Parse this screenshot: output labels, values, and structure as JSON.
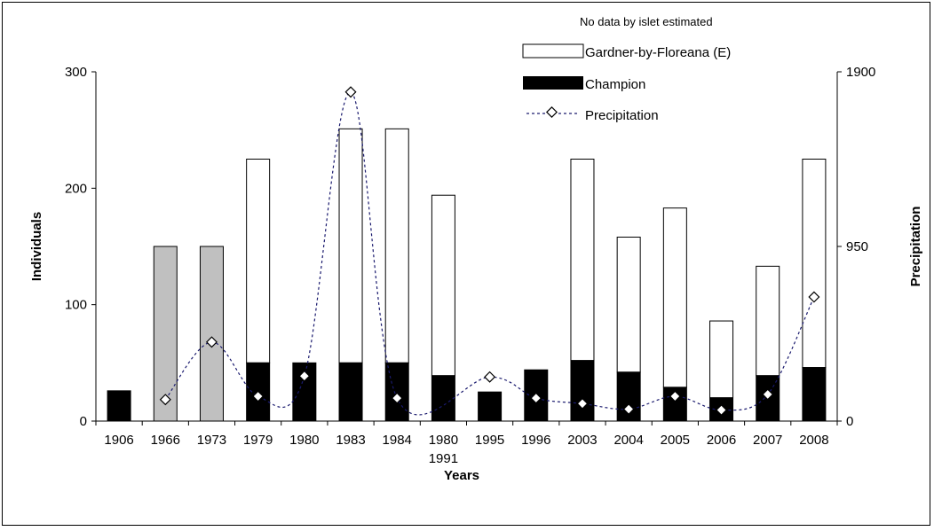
{
  "chart_data": {
    "type": "bar",
    "title": "",
    "xlabel": "Years",
    "ylabel": "Individuals",
    "y2label": "Precipitation",
    "ylim": [
      0,
      300
    ],
    "y2lim": [
      0,
      1900
    ],
    "yticks": [
      "0",
      "100",
      "200",
      "300"
    ],
    "y2ticks": [
      "0",
      "950",
      "1900"
    ],
    "legend_note": "No data by islet estimated",
    "legend_position": "top-right",
    "categories": [
      "1906",
      "1966",
      "1973",
      "1979",
      "1980",
      "1983",
      "1984",
      "1980\n1991",
      "1995",
      "1996",
      "2003",
      "2004",
      "2005",
      "2006",
      "2007",
      "2008"
    ],
    "series": [
      {
        "name": "Champion",
        "type": "bar",
        "color": "#000000",
        "values": [
          26,
          null,
          null,
          50,
          50,
          50,
          50,
          39,
          25,
          44,
          52,
          42,
          29,
          20,
          39,
          46
        ]
      },
      {
        "name": "Gardner-by-Floreana (E)",
        "type": "bar-total",
        "color": "#ffffff",
        "values": [
          null,
          null,
          null,
          225,
          null,
          251,
          251,
          194,
          null,
          null,
          225,
          158,
          183,
          86,
          133,
          225
        ]
      },
      {
        "name": "",
        "type": "bar-estimated",
        "color": "#c0c0c0",
        "values": [
          null,
          150,
          150,
          null,
          null,
          null,
          null,
          null,
          null,
          null,
          null,
          null,
          null,
          null,
          null,
          null
        ]
      },
      {
        "name": "Precipitation",
        "type": "line",
        "axis": "right",
        "color": "#1a1a6e",
        "values": [
          null,
          117,
          430,
          135,
          245,
          1790,
          125,
          null,
          240,
          125,
          95,
          65,
          135,
          60,
          145,
          675
        ]
      }
    ]
  }
}
